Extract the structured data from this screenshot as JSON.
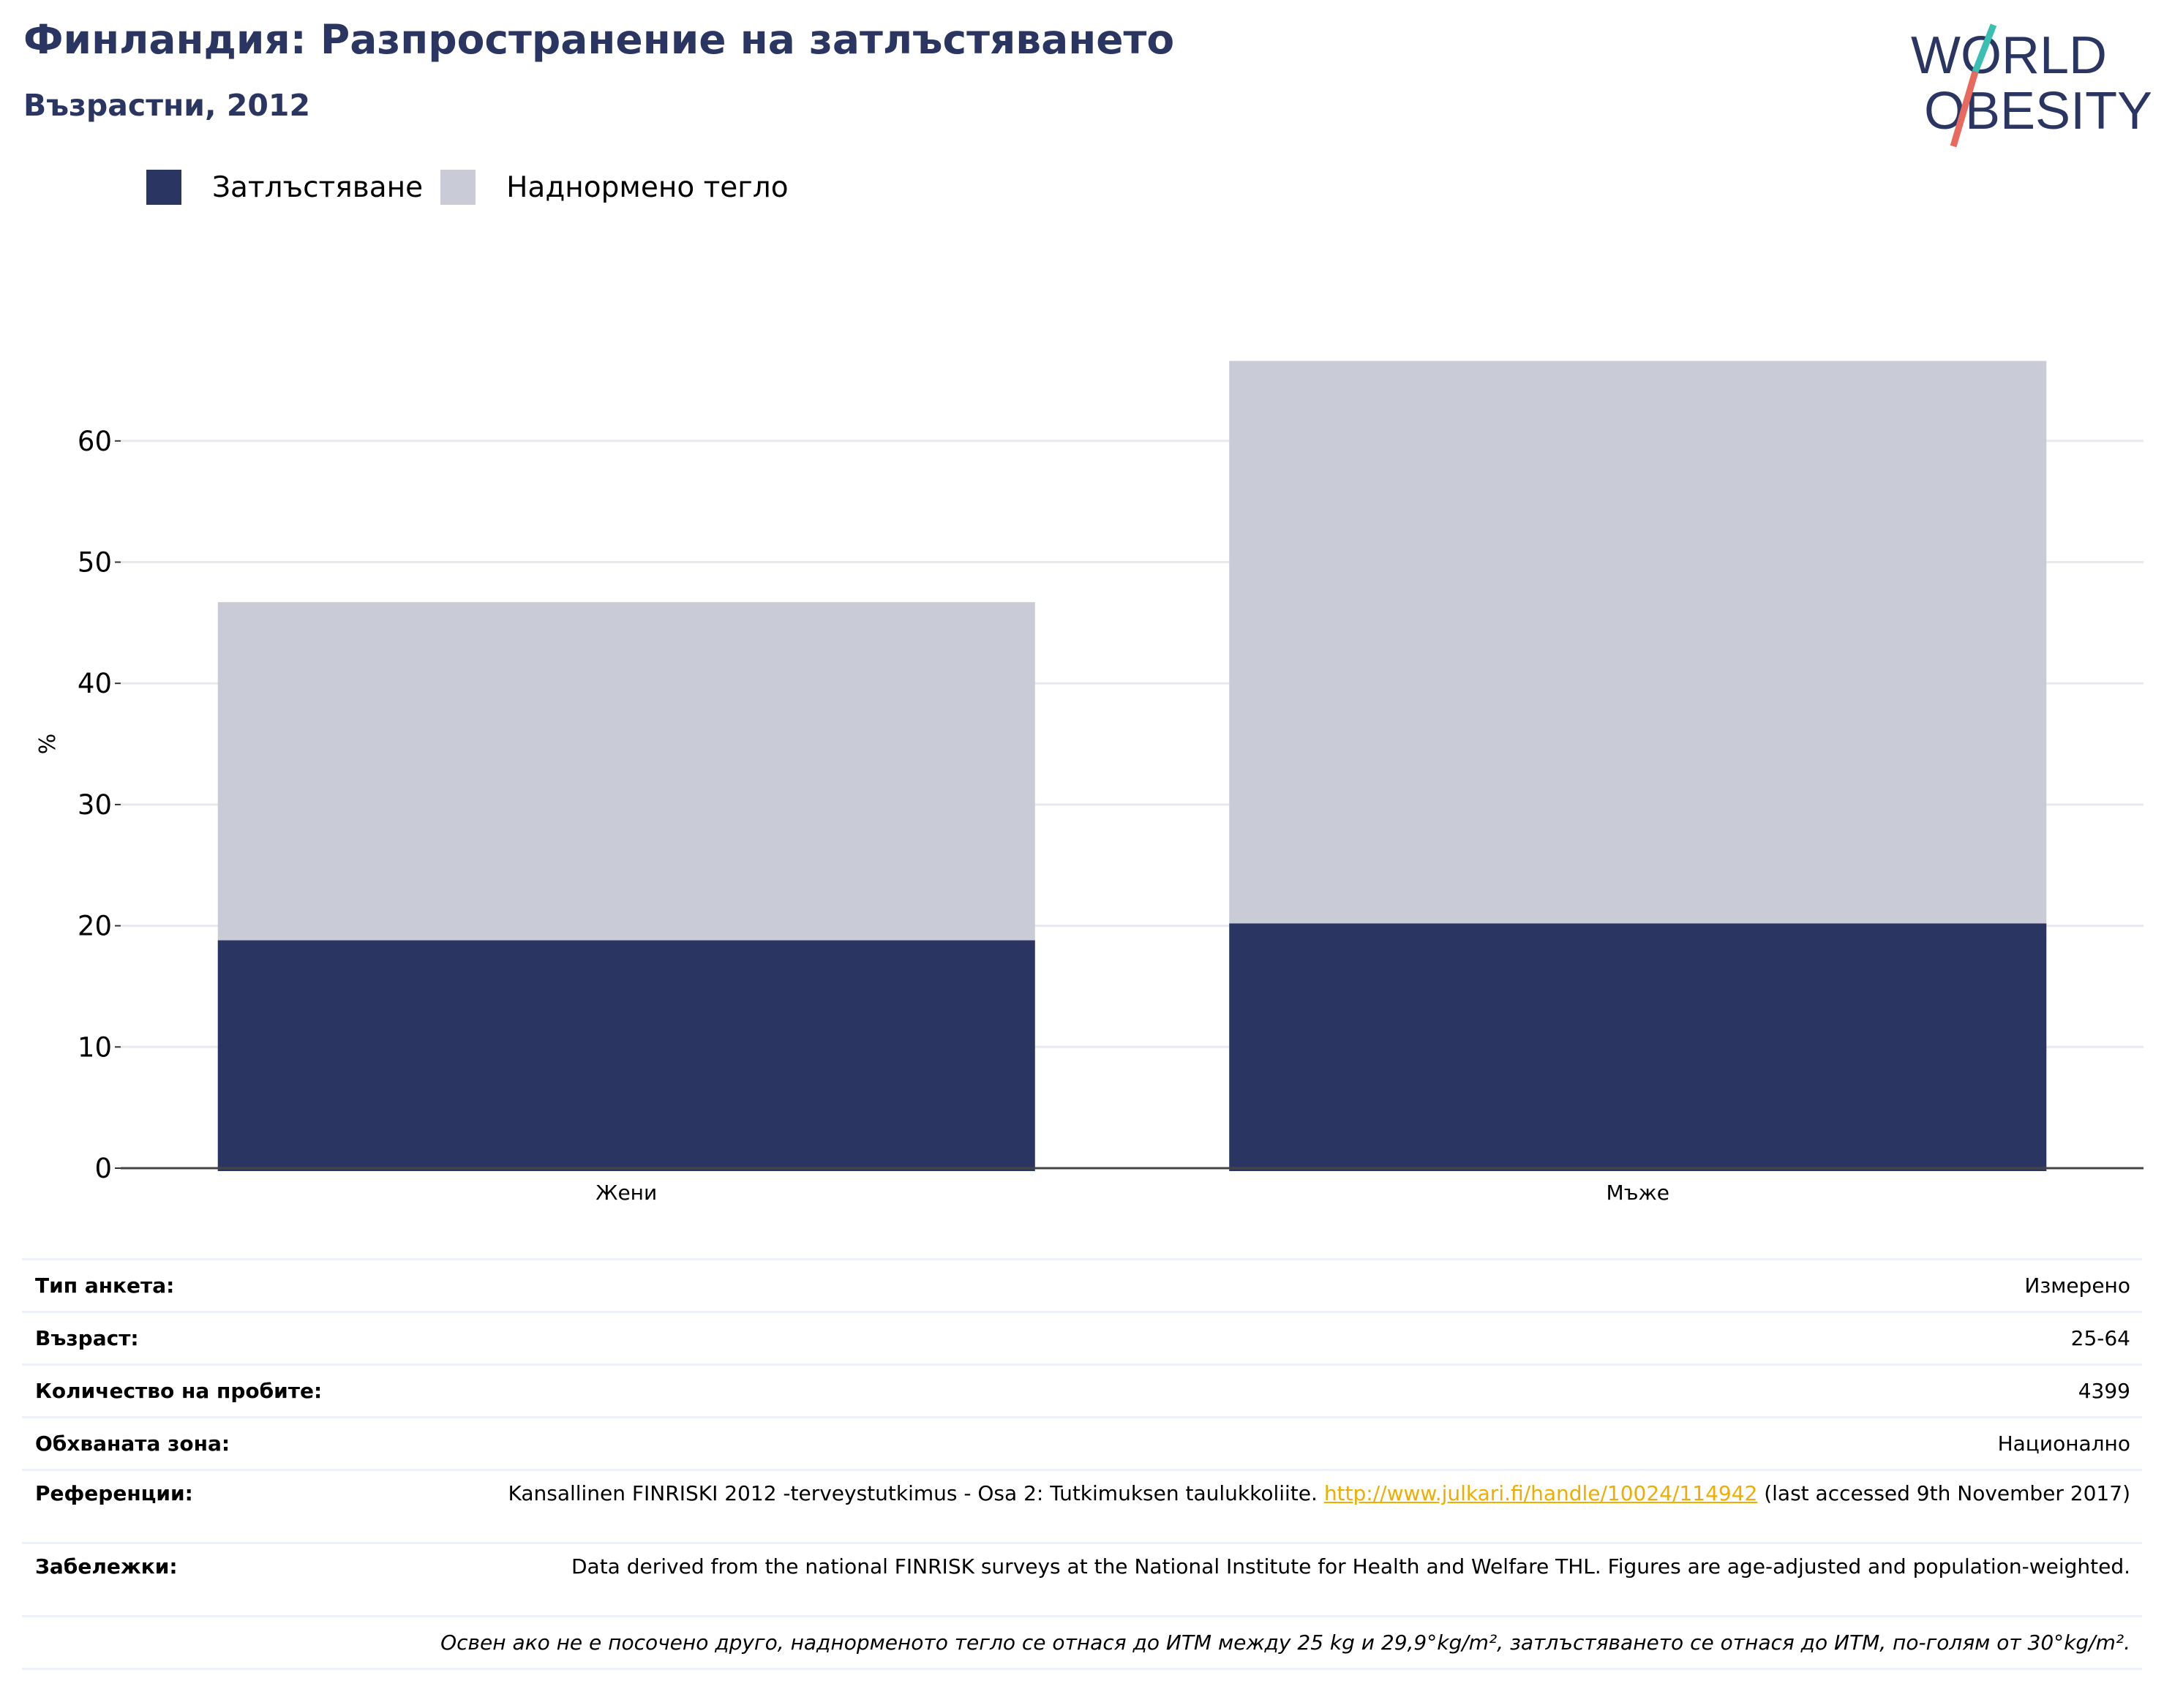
{
  "header": {
    "title": "Финландия: Разпространение на затлъстяването",
    "subtitle": "Възрастни, 2012"
  },
  "logo": {
    "line1": "WORLD",
    "line2": "OBESITY"
  },
  "colors": {
    "obesity": "#2a3562",
    "overweight": "#c9cbd7",
    "title": "#2a3562",
    "link": "#f0ad00",
    "grid": "#e8e9ef"
  },
  "chart_data": {
    "type": "bar",
    "stacked": true,
    "categories": [
      "Жени",
      "Мъже"
    ],
    "series": [
      {
        "name": "Затлъстяване",
        "values": [
          18.8,
          20.2
        ]
      },
      {
        "name": "Наднормено тегло",
        "values": [
          27.9,
          46.4
        ]
      }
    ],
    "ylabel": "%",
    "xlabel": "",
    "ylim": [
      0,
      70
    ],
    "yticks": [
      0,
      10,
      20,
      30,
      40,
      50,
      60
    ],
    "legend_position": "top-left",
    "grid": true
  },
  "info": {
    "rows": [
      {
        "label": "Тип анкета:",
        "value": "Измерено"
      },
      {
        "label": "Възраст:",
        "value": "25-64"
      },
      {
        "label": "Количество на пробите:",
        "value": "4399"
      },
      {
        "label": "Обхваната зона:",
        "value": "Национално"
      }
    ],
    "references": {
      "label": "Референции:",
      "text_before": "Kansallinen FINRISKI 2012 -terveystutkimus - Osa 2: Tutkimuksen taulukkoliite. ",
      "link": "http://www.julkari.fi/handle/10024/114942",
      "text_after": " (last accessed 9th November 2017)"
    },
    "notes": {
      "label": "Забележки:",
      "value": "Data derived from the national FINRISK surveys at the National Institute for Health and Welfare THL. Figures are age-adjusted and population-weighted."
    },
    "footnote": "Освен ако не е посочено друго, наднорменото тегло се отнася до ИТМ между 25 kg и 29,9°kg/m², затлъстяването се отнася до ИТМ, по-голям от 30°kg/m²."
  }
}
